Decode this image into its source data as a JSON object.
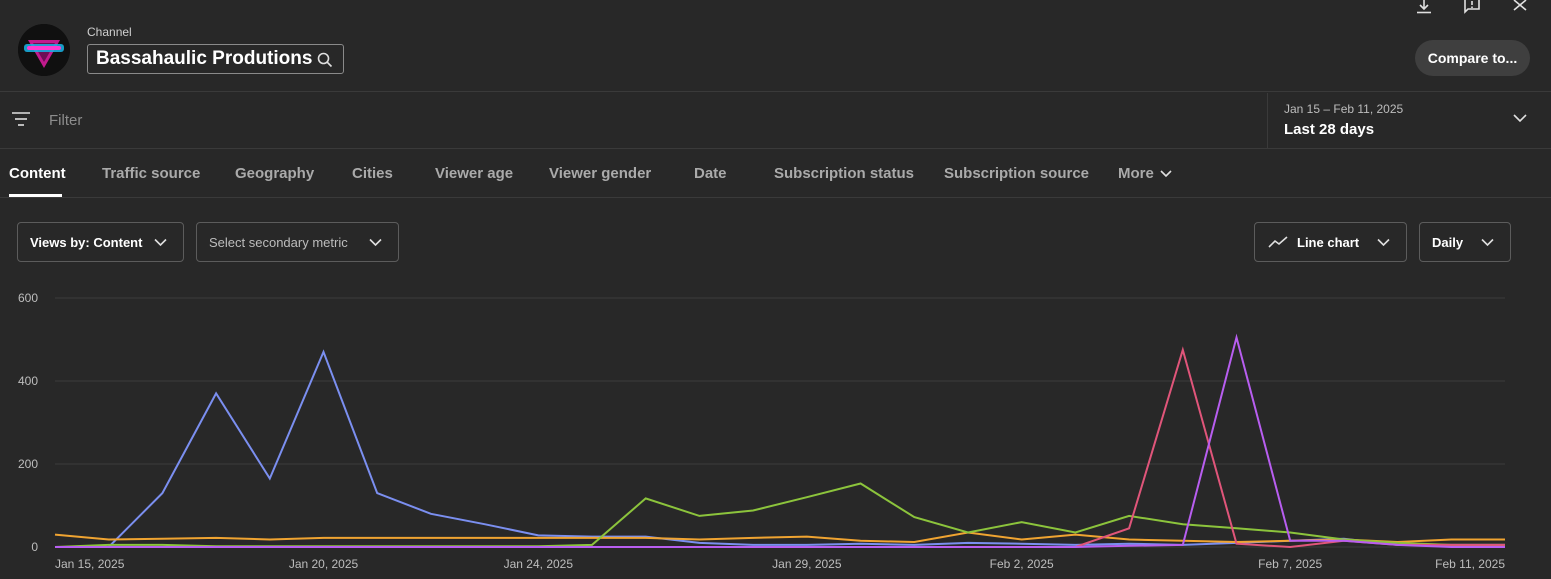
{
  "header": {
    "channel_label": "Channel",
    "channel_name": "Bassahaulic Produtions",
    "compare_label": "Compare to...",
    "icons": [
      "download-icon",
      "feedback-icon",
      "close-icon",
      "search-icon"
    ]
  },
  "filter": {
    "placeholder": "Filter",
    "date_sub": "Jan 15 – Feb 11, 2025",
    "date_main": "Last 28 days"
  },
  "tabs": [
    {
      "label": "Content",
      "active": true
    },
    {
      "label": "Traffic source"
    },
    {
      "label": "Geography"
    },
    {
      "label": "Cities"
    },
    {
      "label": "Viewer age"
    },
    {
      "label": "Viewer gender"
    },
    {
      "label": "Date"
    },
    {
      "label": "Subscription status"
    },
    {
      "label": "Subscription source"
    },
    {
      "label": "More"
    }
  ],
  "controls": {
    "primary_metric": "Views by: Content",
    "secondary_metric": "Select secondary metric",
    "chart_type": "Line chart",
    "granularity": "Daily"
  },
  "colors": {
    "background": "#282828",
    "series_blue": "#7b8ff0",
    "series_orange": "#f0a431",
    "series_green": "#8cc43c",
    "series_red": "#e0557a",
    "series_purple": "#b85ef0"
  },
  "chart_data": {
    "type": "line",
    "x": [
      "Jan 15",
      "Jan 16",
      "Jan 17",
      "Jan 18",
      "Jan 19",
      "Jan 20",
      "Jan 21",
      "Jan 22",
      "Jan 23",
      "Jan 24",
      "Jan 25",
      "Jan 26",
      "Jan 27",
      "Jan 28",
      "Jan 29",
      "Jan 30",
      "Jan 31",
      "Feb 1",
      "Feb 2",
      "Feb 3",
      "Feb 4",
      "Feb 5",
      "Feb 6",
      "Feb 7",
      "Feb 8",
      "Feb 9",
      "Feb 10",
      "Feb 11"
    ],
    "x_tick_labels": [
      "Jan 15, 2025",
      "Jan 20, 2025",
      "Jan 24, 2025",
      "Jan 29, 2025",
      "Feb 2, 2025",
      "Feb 7, 2025",
      "Feb 11, 2025"
    ],
    "x_tick_index": [
      0,
      5,
      9,
      14,
      18,
      23,
      27
    ],
    "y_ticks": [
      0,
      200,
      400,
      600
    ],
    "ylim": [
      0,
      600
    ],
    "grid": true,
    "series": [
      {
        "color": "#7b8ff0",
        "values": [
          0,
          0,
          130,
          370,
          165,
          470,
          130,
          80,
          55,
          28,
          25,
          25,
          10,
          5,
          5,
          8,
          5,
          10,
          8,
          5,
          8,
          5,
          10,
          15,
          20,
          5,
          5,
          5
        ]
      },
      {
        "color": "#f0a431",
        "values": [
          30,
          18,
          20,
          22,
          18,
          22,
          22,
          22,
          22,
          22,
          22,
          22,
          18,
          22,
          25,
          15,
          12,
          35,
          18,
          30,
          18,
          15,
          12,
          15,
          18,
          12,
          18,
          18
        ]
      },
      {
        "color": "#8cc43c",
        "values": [
          0,
          5,
          5,
          2,
          2,
          2,
          2,
          2,
          2,
          2,
          5,
          117,
          75,
          88,
          120,
          153,
          72,
          35,
          60,
          35,
          75,
          55,
          45,
          35,
          18,
          10,
          5,
          5
        ]
      },
      {
        "color": "#e0557a",
        "values": [
          0,
          0,
          0,
          0,
          0,
          0,
          0,
          0,
          0,
          0,
          0,
          0,
          0,
          0,
          0,
          0,
          0,
          0,
          0,
          0,
          45,
          475,
          8,
          0,
          15,
          5,
          5,
          5
        ]
      },
      {
        "color": "#b85ef0",
        "values": [
          0,
          0,
          0,
          0,
          0,
          0,
          0,
          0,
          0,
          0,
          0,
          0,
          0,
          0,
          0,
          0,
          0,
          0,
          0,
          0,
          3,
          5,
          505,
          15,
          15,
          5,
          0,
          0
        ]
      }
    ]
  }
}
